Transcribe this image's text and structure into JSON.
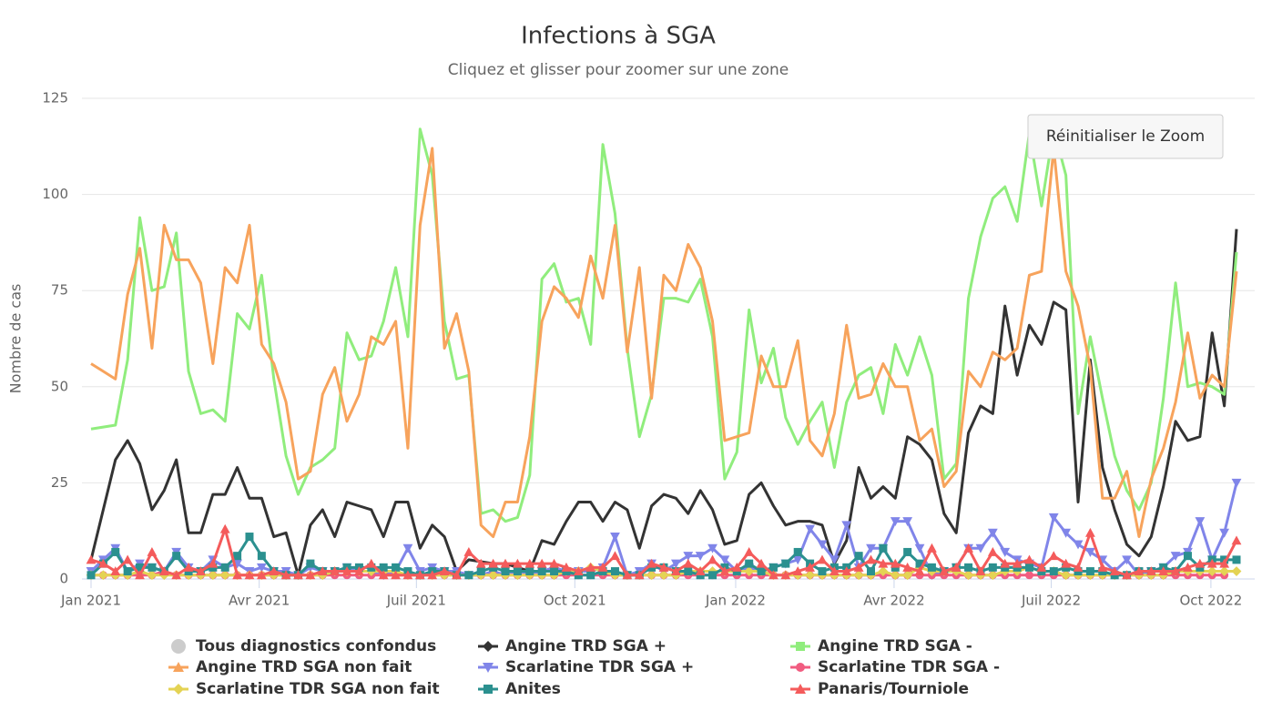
{
  "chart_data": {
    "type": "line",
    "title": "Infections à SGA",
    "subtitle": "Cliquez et glisser pour zoomer sur une zone",
    "button": "Réinitialiser le Zoom",
    "y_label": "Nombre de cas",
    "ylim": [
      0,
      125
    ],
    "yticks": [
      0,
      25,
      50,
      75,
      100,
      125
    ],
    "grid": true,
    "xlim": [
      0,
      94
    ],
    "xticks": [
      {
        "value": 0,
        "label": "Jan 2021"
      },
      {
        "value": 13.8,
        "label": "Avr 2021"
      },
      {
        "value": 26.7,
        "label": "Juil 2021"
      },
      {
        "value": 39.7,
        "label": "Oct 2021"
      },
      {
        "value": 52.9,
        "label": "Jan 2022"
      },
      {
        "value": 65.9,
        "label": "Avr 2022"
      },
      {
        "value": 78.8,
        "label": "Juil 2022"
      },
      {
        "value": 91.9,
        "label": "Oct 2022"
      }
    ],
    "x": [
      0,
      1,
      2,
      3,
      4,
      5,
      6,
      7,
      8,
      9,
      10,
      11,
      12,
      13,
      14,
      15,
      16,
      17,
      18,
      19,
      20,
      21,
      22,
      23,
      24,
      25,
      26,
      27,
      28,
      29,
      30,
      31,
      32,
      33,
      34,
      35,
      36,
      37,
      38,
      39,
      40,
      41,
      42,
      43,
      44,
      45,
      46,
      47,
      48,
      49,
      50,
      51,
      52,
      53,
      54,
      55,
      56,
      57,
      58,
      59,
      60,
      61,
      62,
      63,
      64,
      65,
      66,
      67,
      68,
      69,
      70,
      71,
      72,
      73,
      74,
      75,
      76,
      77,
      78,
      79,
      80,
      81,
      82,
      83,
      84,
      85,
      86,
      87,
      88,
      89,
      90,
      91,
      92,
      93,
      94
    ],
    "series": [
      {
        "name": "Tous diagnostics confondus",
        "color": "#cccccc",
        "symbol": "circle",
        "visible": false
      },
      {
        "name": "Angine TRD SGA +",
        "color": "#333333",
        "symbol": "diamond",
        "markers": false,
        "values": [
          5,
          18,
          31,
          36,
          30,
          18,
          23,
          31,
          12,
          12,
          22,
          22,
          29,
          21,
          21,
          11,
          12,
          1,
          14,
          18,
          11,
          20,
          19,
          18,
          11,
          20,
          20,
          8,
          14,
          11,
          2,
          5,
          4.5,
          4,
          4,
          3,
          2,
          10,
          9,
          15,
          20,
          20,
          15,
          20,
          18,
          8,
          19,
          22,
          21,
          17,
          23,
          18,
          9,
          10,
          22,
          25,
          19,
          14,
          15,
          15,
          14,
          4,
          10,
          29,
          21,
          24,
          21,
          37,
          35,
          31,
          17,
          12,
          38,
          45,
          43,
          71,
          53,
          66,
          61,
          72,
          70,
          20,
          57,
          29,
          18,
          9,
          6,
          11,
          24,
          41,
          36,
          37,
          64,
          45,
          91
        ]
      },
      {
        "name": "Angine TRD SGA -",
        "color": "#90ed7d",
        "symbol": "square",
        "markers": false,
        "values": [
          39,
          39.5,
          40,
          57,
          94,
          75,
          76,
          90,
          54,
          43,
          44,
          41,
          69,
          65,
          79,
          52,
          32,
          22,
          29,
          31,
          34,
          64,
          57,
          58,
          67,
          81,
          63,
          117,
          105,
          67,
          52,
          53,
          17,
          18,
          15,
          16,
          27,
          78,
          82,
          72,
          73,
          61,
          113,
          95,
          60,
          37,
          48,
          73,
          73,
          72,
          78,
          63,
          26,
          33,
          70,
          51,
          60,
          42,
          35,
          41,
          46,
          29,
          46,
          53,
          55,
          43,
          61,
          53,
          63,
          53,
          26,
          30,
          73,
          89,
          99,
          102,
          93,
          116,
          97,
          117,
          105,
          43,
          63,
          47,
          32,
          23,
          18,
          25,
          47,
          77,
          50,
          51,
          50,
          48,
          85
        ]
      },
      {
        "name": "Angine TRD SGA non fait",
        "color": "#f7a35c",
        "symbol": "triangle",
        "markers": false,
        "values": [
          56,
          54,
          52,
          74,
          86,
          60,
          92,
          83,
          83,
          77,
          56,
          81,
          77,
          92,
          61,
          56,
          46,
          26,
          28,
          48,
          55,
          41,
          48,
          63,
          61,
          67,
          34,
          92,
          112,
          60,
          69,
          54,
          14,
          11,
          20,
          20,
          37,
          67,
          76,
          73,
          68,
          84,
          73,
          92,
          59,
          81,
          47,
          79,
          75,
          87,
          81,
          67,
          36,
          37,
          38,
          58,
          50,
          50,
          62,
          36,
          32,
          43,
          66,
          47,
          48,
          56,
          50,
          50,
          36,
          39,
          24,
          28,
          54,
          50,
          59,
          57,
          60,
          79,
          80,
          112,
          80,
          71,
          55,
          21,
          21,
          28,
          11,
          26,
          34,
          46,
          64,
          47,
          53,
          50,
          80
        ]
      },
      {
        "name": "Scarlatine TDR SGA +",
        "color": "#8085e9",
        "symbol": "triangle-down",
        "markers": true,
        "values": [
          2,
          5,
          8,
          2,
          4,
          3,
          2,
          7,
          3,
          2,
          5,
          3,
          4,
          2,
          3,
          2,
          2,
          1,
          3,
          2,
          2,
          3,
          2,
          2,
          1,
          2,
          8,
          2,
          3,
          2,
          2,
          1,
          1,
          2,
          1,
          2,
          1,
          2,
          3,
          2,
          2,
          2,
          3,
          11,
          1,
          2,
          4,
          2,
          4,
          6,
          6,
          8,
          5,
          2,
          3,
          2,
          3,
          4,
          5,
          13,
          9,
          5,
          14,
          3,
          8,
          8,
          15,
          15,
          8,
          1,
          2,
          3,
          8,
          8,
          12,
          7,
          5,
          4,
          3,
          16,
          12,
          9,
          7,
          5,
          2,
          5,
          1,
          2,
          3,
          6,
          7,
          15,
          5,
          12,
          25
        ]
      },
      {
        "name": "Scarlatine TDR SGA -",
        "color": "#f15c80",
        "symbol": "circle",
        "markers": true,
        "values": [
          1,
          1,
          1,
          1,
          1,
          1,
          2,
          1,
          1,
          1,
          1,
          1,
          1,
          1,
          1,
          1,
          1,
          1,
          1,
          1,
          1,
          1,
          1,
          1,
          1,
          1,
          1,
          1,
          1,
          1,
          1,
          1,
          1,
          1,
          1,
          1,
          1,
          1,
          1,
          1,
          1,
          1,
          1,
          1,
          1,
          1,
          1,
          1,
          1,
          1,
          1,
          1,
          1,
          1,
          1,
          1,
          1,
          1,
          1,
          1,
          1,
          1,
          1,
          1,
          1,
          1,
          1,
          1,
          1,
          1,
          1,
          1,
          1,
          1,
          1,
          1,
          1,
          1,
          1,
          1,
          1,
          1,
          1,
          1,
          1,
          1,
          1,
          1,
          1,
          1,
          1,
          1,
          1,
          1,
          null
        ]
      },
      {
        "name": "Scarlatine TDR SGA non fait",
        "color": "#e4d354",
        "symbol": "diamond",
        "markers": true,
        "values": [
          1,
          1,
          1,
          1,
          2,
          1,
          1,
          1,
          1,
          1,
          1,
          1,
          1,
          1,
          1,
          1,
          1,
          1,
          1,
          1,
          2,
          2,
          2,
          2,
          2,
          2,
          1,
          1,
          1,
          1,
          1,
          1,
          1,
          1,
          1,
          1,
          1,
          1,
          1,
          2,
          2,
          3,
          2,
          1,
          1,
          1,
          1,
          1,
          1,
          2,
          2,
          2,
          2,
          2,
          2,
          2,
          1,
          1,
          1,
          1,
          1,
          1,
          1,
          1,
          1,
          2,
          1,
          1,
          3,
          2,
          2,
          2,
          1,
          1,
          1,
          2,
          2,
          3,
          2,
          2,
          1,
          1,
          1,
          1,
          1,
          1,
          1,
          1,
          1,
          2,
          2,
          2,
          2,
          2,
          2
        ]
      },
      {
        "name": "Anites",
        "color": "#2b908f",
        "symbol": "square",
        "markers": true,
        "values": [
          1,
          4,
          7,
          2,
          3,
          3,
          2,
          6,
          2,
          2,
          3,
          3,
          6,
          11,
          6,
          2,
          1,
          1,
          4,
          2,
          2,
          3,
          3,
          3,
          3,
          3,
          2,
          1,
          2,
          2,
          1,
          1,
          2,
          3,
          2,
          2,
          2,
          2,
          2,
          2,
          1,
          1,
          2,
          2,
          1,
          1,
          3,
          3,
          2,
          2,
          1,
          1,
          3,
          2,
          4,
          2,
          3,
          4,
          7,
          4,
          2,
          3,
          3,
          6,
          2,
          8,
          3,
          7,
          4,
          3,
          2,
          3,
          3,
          2,
          3,
          3,
          3,
          3,
          2,
          2,
          3,
          2,
          2,
          2,
          1,
          1,
          2,
          2,
          3,
          2,
          6,
          3,
          5,
          5,
          5
        ]
      },
      {
        "name": "Panaris/Tourniole",
        "color": "#f45b5b",
        "symbol": "triangle",
        "markers": true,
        "values": [
          5,
          4,
          2,
          5,
          1,
          7,
          2,
          1,
          3,
          2,
          4,
          13,
          1,
          1,
          1,
          2,
          1,
          1,
          1,
          2,
          2,
          2,
          2,
          4,
          1,
          1,
          1,
          1,
          1,
          2,
          1,
          7,
          4,
          4,
          4,
          4,
          4,
          4,
          4,
          3,
          2,
          3,
          3,
          6,
          1,
          1,
          4,
          3,
          2,
          4,
          2,
          5,
          2,
          3,
          7,
          4,
          1,
          1,
          2,
          3,
          5,
          2,
          2,
          3,
          5,
          4,
          4,
          3,
          2,
          8,
          2,
          3,
          8,
          2,
          7,
          4,
          4,
          5,
          3,
          6,
          4,
          3,
          12,
          3,
          2,
          1,
          2,
          2,
          2,
          2,
          3,
          4,
          4,
          4,
          10
        ]
      }
    ]
  }
}
